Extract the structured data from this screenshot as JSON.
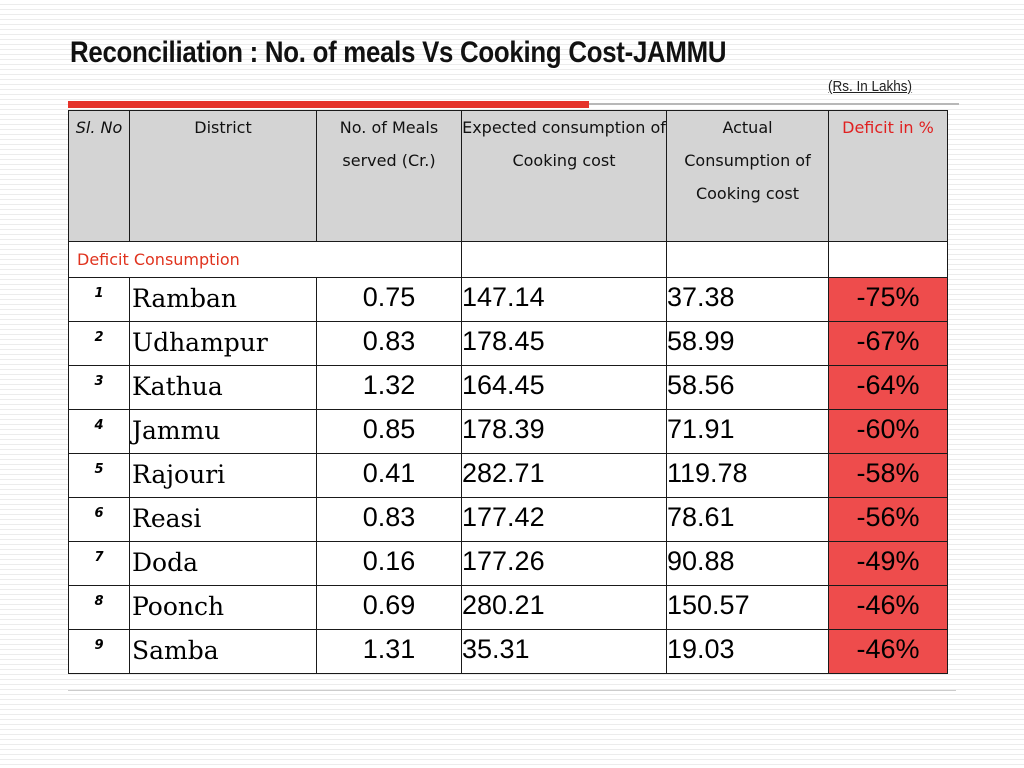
{
  "slide": {
    "title": "Reconciliation : No. of meals Vs Cooking Cost-JAMMU",
    "units": "(Rs. In Lakhs)",
    "accent_color": "#e5322a",
    "deficit_cell_color": "#ee4c4c"
  },
  "table": {
    "headers": {
      "sl": "Sl. No",
      "district": "District",
      "meals": "No. of Meals served (Cr.)",
      "expected": "Expected consumption of Cooking cost",
      "actual": "Actual Consumption of Cooking cost",
      "deficit": "Deficit in %"
    },
    "section_label": "Deficit Consumption",
    "rows": [
      {
        "sl": "1",
        "district": "Ramban",
        "meals": "0.75",
        "expected": "147.14",
        "actual": "37.38",
        "deficit": "-75%"
      },
      {
        "sl": "2",
        "district": "Udhampur",
        "meals": "0.83",
        "expected": "178.45",
        "actual": "58.99",
        "deficit": "-67%"
      },
      {
        "sl": "3",
        "district": "Kathua",
        "meals": "1.32",
        "expected": "164.45",
        "actual": "58.56",
        "deficit": "-64%"
      },
      {
        "sl": "4",
        "district": "Jammu",
        "meals": "0.85",
        "expected": "178.39",
        "actual": "71.91",
        "deficit": "-60%"
      },
      {
        "sl": "5",
        "district": "Rajouri",
        "meals": "0.41",
        "expected": "282.71",
        "actual": "119.78",
        "deficit": "-58%"
      },
      {
        "sl": "6",
        "district": "Reasi",
        "meals": "0.83",
        "expected": "177.42",
        "actual": "78.61",
        "deficit": "-56%"
      },
      {
        "sl": "7",
        "district": "Doda",
        "meals": "0.16",
        "expected": "177.26",
        "actual": "90.88",
        "deficit": "-49%"
      },
      {
        "sl": "8",
        "district": "Poonch",
        "meals": "0.69",
        "expected": "280.21",
        "actual": "150.57",
        "deficit": "-46%"
      },
      {
        "sl": "9",
        "district": "Samba",
        "meals": "1.31",
        "expected": "35.31",
        "actual": "19.03",
        "deficit": "-46%"
      }
    ]
  }
}
